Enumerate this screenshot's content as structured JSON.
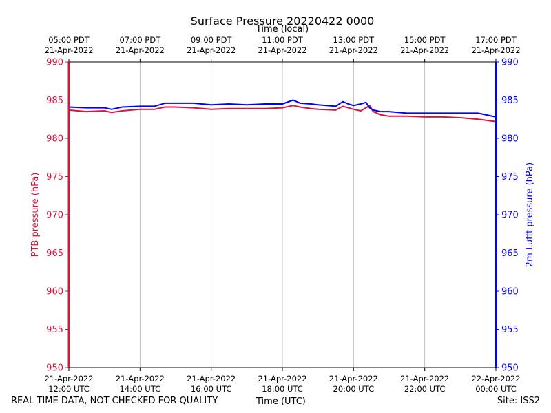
{
  "chart_data": {
    "type": "line",
    "title": "Surface Pressure 20220422 0000",
    "xlabel_bottom": "Time (UTC)",
    "xlabel_top": "Time (local)",
    "ylabel_left": "PTB pressure (hPa)",
    "ylabel_right": "2m Lufft pressure (hPa)",
    "ylim": [
      950,
      990
    ],
    "xlim": [
      0,
      12
    ],
    "yticks": [
      950,
      955,
      960,
      965,
      970,
      975,
      980,
      985,
      990
    ],
    "bottom_ticks": [
      {
        "x": 0,
        "line1": "21-Apr-2022",
        "line2": "12:00 UTC"
      },
      {
        "x": 2,
        "line1": "21-Apr-2022",
        "line2": "14:00 UTC"
      },
      {
        "x": 4,
        "line1": "21-Apr-2022",
        "line2": "16:00 UTC"
      },
      {
        "x": 6,
        "line1": "21-Apr-2022",
        "line2": "18:00 UTC"
      },
      {
        "x": 8,
        "line1": "21-Apr-2022",
        "line2": "20:00 UTC"
      },
      {
        "x": 10,
        "line1": "21-Apr-2022",
        "line2": "22:00 UTC"
      },
      {
        "x": 12,
        "line1": "22-Apr-2022",
        "line2": "00:00 UTC"
      }
    ],
    "top_ticks": [
      {
        "x": 0,
        "line1": "05:00 PDT",
        "line2": "21-Apr-2022"
      },
      {
        "x": 2,
        "line1": "07:00 PDT",
        "line2": "21-Apr-2022"
      },
      {
        "x": 4,
        "line1": "09:00 PDT",
        "line2": "21-Apr-2022"
      },
      {
        "x": 6,
        "line1": "11:00 PDT",
        "line2": "21-Apr-2022"
      },
      {
        "x": 8,
        "line1": "13:00 PDT",
        "line2": "21-Apr-2022"
      },
      {
        "x": 10,
        "line1": "15:00 PDT",
        "line2": "21-Apr-2022"
      },
      {
        "x": 12,
        "line1": "17:00 PDT",
        "line2": "21-Apr-2022"
      }
    ],
    "grid_x": true,
    "series": [
      {
        "color": "#dc143c",
        "axis": "left",
        "x": [
          0,
          0.5,
          1,
          1.2,
          1.5,
          2,
          2.4,
          2.7,
          3,
          3.5,
          4,
          4.5,
          5,
          5.5,
          6,
          6.3,
          6.5,
          6.8,
          7,
          7.5,
          7.7,
          7.85,
          8,
          8.2,
          8.35,
          8.45,
          8.55,
          8.75,
          9,
          9.5,
          10,
          10.5,
          11,
          11.5,
          12
        ],
        "values": [
          983.7,
          983.5,
          983.6,
          983.4,
          983.6,
          983.8,
          983.8,
          984.1,
          984.1,
          984.0,
          983.8,
          983.9,
          983.9,
          983.9,
          984.0,
          984.3,
          984.1,
          983.9,
          983.8,
          983.7,
          984.2,
          984.0,
          983.8,
          983.6,
          984.0,
          984.3,
          983.5,
          983.1,
          982.9,
          982.9,
          982.8,
          982.8,
          982.7,
          982.5,
          982.2
        ]
      },
      {
        "color": "#0000ff",
        "axis": "right",
        "x": [
          0,
          0.5,
          1,
          1.2,
          1.5,
          2,
          2.4,
          2.7,
          3,
          3.5,
          4,
          4.5,
          5,
          5.5,
          6,
          6.3,
          6.5,
          6.8,
          7,
          7.5,
          7.7,
          7.85,
          8,
          8.2,
          8.35,
          8.45,
          8.55,
          8.75,
          9,
          9.5,
          10,
          10.5,
          11,
          11.5,
          12
        ],
        "values": [
          984.1,
          984.0,
          984.0,
          983.8,
          984.1,
          984.2,
          984.2,
          984.6,
          984.6,
          984.6,
          984.4,
          984.5,
          984.4,
          984.5,
          984.5,
          985.0,
          984.6,
          984.5,
          984.4,
          984.2,
          984.8,
          984.5,
          984.3,
          984.5,
          984.7,
          984.0,
          983.7,
          983.5,
          983.5,
          983.3,
          983.3,
          983.3,
          983.3,
          983.3,
          982.8
        ]
      }
    ]
  },
  "footer": {
    "left": "REAL TIME DATA, NOT CHECKED FOR QUALITY",
    "center": "Time (UTC)",
    "right": "Site: ISS2"
  }
}
